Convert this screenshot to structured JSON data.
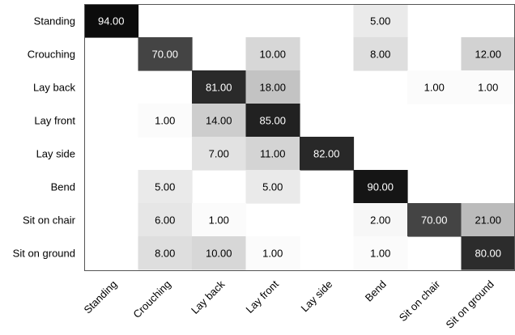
{
  "chart_data": {
    "type": "heatmap",
    "title": "",
    "xlabel": "",
    "ylabel": "",
    "rows": [
      "Standing",
      "Crouching",
      "Lay back",
      "Lay front",
      "Lay side",
      "Bend",
      "Sit on chair",
      "Sit on ground"
    ],
    "columns": [
      "Standing",
      "Crouching",
      "Lay back",
      "Lay front",
      "Lay side",
      "Bend",
      "Sit on chair",
      "Sit on ground"
    ],
    "values": [
      [
        94.0,
        null,
        null,
        null,
        null,
        5.0,
        null,
        null
      ],
      [
        null,
        70.0,
        null,
        10.0,
        null,
        8.0,
        null,
        12.0
      ],
      [
        null,
        null,
        81.0,
        18.0,
        null,
        null,
        1.0,
        1.0
      ],
      [
        null,
        1.0,
        14.0,
        85.0,
        null,
        null,
        null,
        null
      ],
      [
        null,
        null,
        7.0,
        11.0,
        82.0,
        null,
        null,
        null
      ],
      [
        null,
        5.0,
        null,
        5.0,
        null,
        90.0,
        null,
        null
      ],
      [
        null,
        6.0,
        1.0,
        null,
        null,
        2.0,
        70.0,
        21.0
      ],
      [
        null,
        8.0,
        10.0,
        1.0,
        null,
        1.0,
        null,
        80.0
      ]
    ],
    "value_format_decimals": 2,
    "colormap": "grayscale (white = low, black = high)",
    "color_low": "#ffffff",
    "color_high": "#000000",
    "text_color_dark_cells": "#ffffff",
    "text_color_light_cells": "#000000",
    "grid": false
  }
}
